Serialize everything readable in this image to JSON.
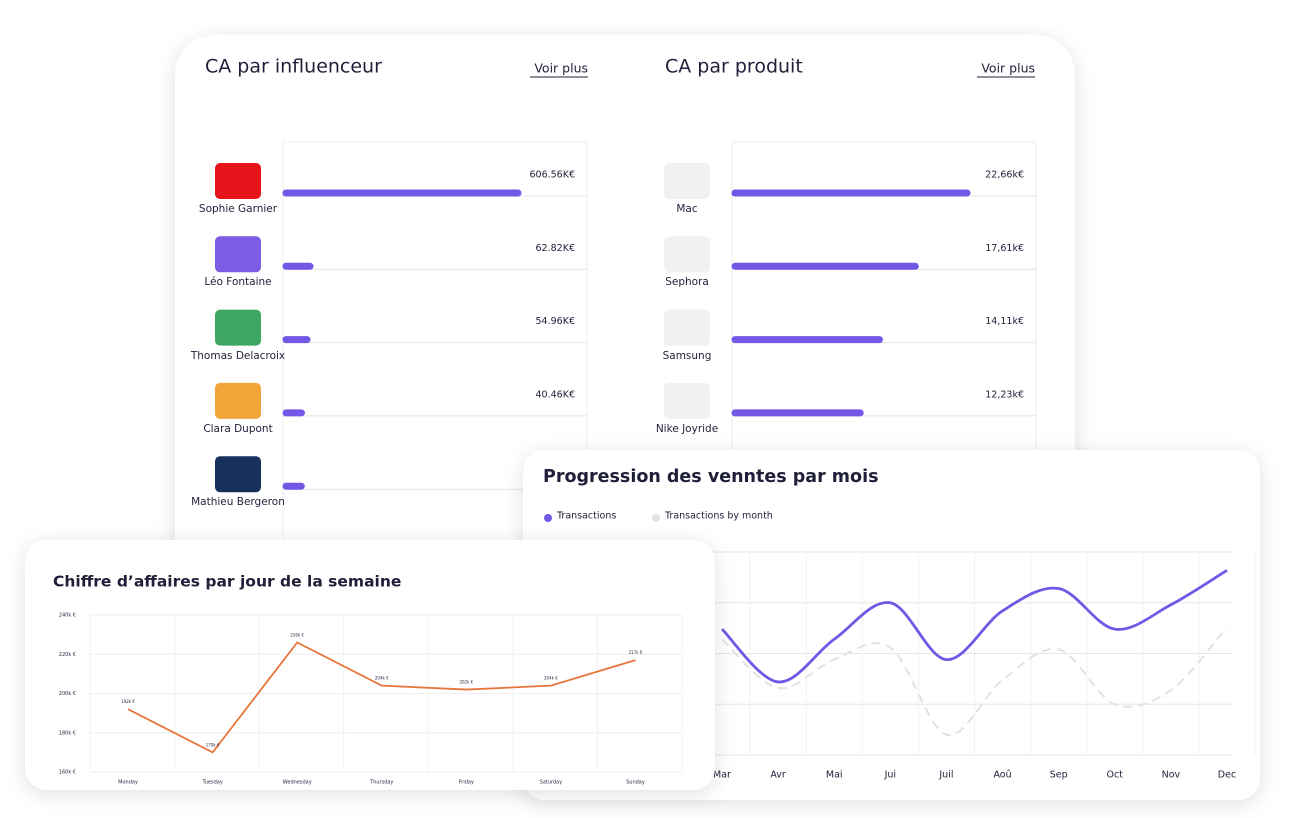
{
  "chart_data": [
    {
      "type": "hbar",
      "title": "CA par influenceur",
      "link": "Voir plus",
      "categories": [
        "Sophie Garnier",
        "Léo Fontaine",
        "Thomas Delacroix",
        "Clara Dupont",
        "Mathieu Bergeron"
      ],
      "values": [
        606.56,
        62.82,
        54.96,
        40.46,
        40
      ],
      "value_labels": [
        "606.56K€",
        "62.82K€",
        "54.96K€",
        "40.46K€",
        null
      ],
      "color": "#7357e6"
    },
    {
      "type": "hbar",
      "title": "CA par produit",
      "link": "Voir plus",
      "categories": [
        "Mac",
        "Sephora",
        "Samsung",
        "Nike Joyride"
      ],
      "values": [
        22.66,
        17.61,
        14.11,
        12.23
      ],
      "value_labels": [
        "22,66k€",
        "17,61k€",
        "14,11k€",
        "12,23k€"
      ],
      "color": "#7357e6"
    },
    {
      "type": "curve",
      "title": "Progression des venntes par mois",
      "categories": [
        "Mar",
        "Avr",
        "Mai",
        "Jui",
        "Juil",
        "Aoû",
        "Sep",
        "Oct",
        "Nov",
        "Dec"
      ],
      "series": [
        {
          "name": "Transactions",
          "color": "#7357e6",
          "values": [
            62,
            36,
            57,
            75,
            47,
            71,
            82,
            62,
            74,
            91
          ]
        },
        {
          "name": "Transactions by month",
          "color": "#e2e2e2",
          "values": [
            57,
            33,
            47,
            53,
            10,
            37,
            52,
            25,
            32,
            63
          ]
        }
      ],
      "ylim": [
        0,
        100
      ]
    },
    {
      "type": "line",
      "title": "Chiffre d’affaires par jour de la semaine",
      "categories": [
        "Monday",
        "Tuesday",
        "Wednesday",
        "Thursday",
        "Friday",
        "Saturday",
        "Sunday"
      ],
      "values": [
        192,
        170,
        226,
        204,
        202,
        204,
        217
      ],
      "value_labels": [
        "192k €",
        "170k €",
        "226k €",
        "204k €",
        "202k €",
        "204k €",
        "217k €"
      ],
      "color": "#e8743b",
      "ylim": [
        160,
        240
      ],
      "yticks": [
        {
          "value": 160,
          "label": "160k €"
        },
        {
          "value": 180,
          "label": "180k €"
        },
        {
          "value": 200,
          "label": "200k €"
        },
        {
          "value": 220,
          "label": "220k €"
        },
        {
          "value": 240,
          "label": "240k €"
        }
      ],
      "grid": true
    }
  ]
}
